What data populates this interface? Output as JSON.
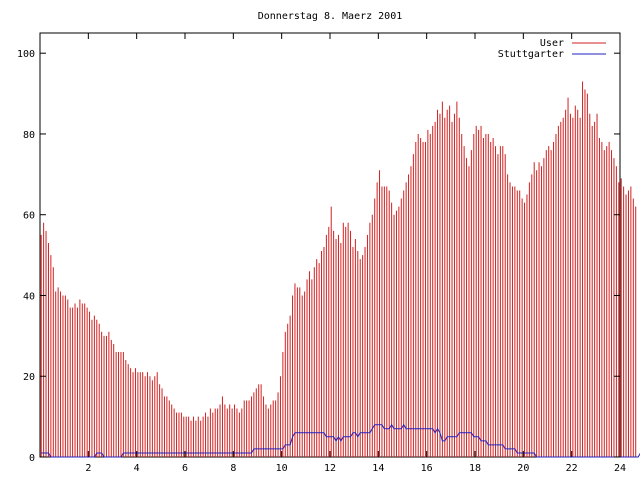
{
  "chart_data": {
    "type": "bar",
    "title": "Donnerstag 8. Maerz 2001",
    "xlabel": "",
    "ylabel": "",
    "xlim": [
      0,
      24
    ],
    "ylim": [
      0,
      105
    ],
    "x_ticks": [
      2,
      4,
      6,
      8,
      10,
      12,
      14,
      16,
      18,
      20,
      22,
      24
    ],
    "y_ticks": [
      0,
      20,
      40,
      60,
      80,
      100
    ],
    "grid": false,
    "legend_position": "top-right",
    "interval_hours": 0.1,
    "series": [
      {
        "name": "User",
        "kind": "impulses",
        "color": "#d02020",
        "values": [
          55,
          58,
          56,
          53,
          50,
          47,
          41,
          42,
          41,
          40,
          40,
          39,
          37,
          37,
          38,
          37,
          39,
          38,
          38,
          37,
          36,
          34,
          35,
          34,
          33,
          31,
          30,
          30,
          31,
          29,
          28,
          26,
          26,
          26,
          26,
          24,
          23,
          22,
          21,
          22,
          21,
          21,
          21,
          20,
          21,
          20,
          19,
          20,
          21,
          18,
          17,
          15,
          15,
          14,
          13,
          12,
          11,
          11,
          11,
          10,
          10,
          10,
          9,
          10,
          9,
          10,
          9,
          10,
          11,
          10,
          12,
          11,
          12,
          12,
          13,
          15,
          13,
          12,
          13,
          12,
          13,
          12,
          11,
          12,
          14,
          14,
          14,
          15,
          16,
          17,
          18,
          18,
          15,
          13,
          12,
          13,
          14,
          14,
          16,
          20,
          26,
          31,
          33,
          35,
          40,
          43,
          42,
          42,
          40,
          41,
          44,
          46,
          44,
          47,
          49,
          48,
          51,
          52,
          55,
          57,
          62,
          56,
          54,
          55,
          53,
          58,
          57,
          58,
          56,
          52,
          54,
          51,
          49,
          50,
          52,
          55,
          58,
          60,
          64,
          68,
          71,
          67,
          67,
          67,
          66,
          63,
          60,
          61,
          62,
          64,
          66,
          68,
          70,
          72,
          75,
          78,
          80,
          79,
          78,
          78,
          81,
          80,
          82,
          83,
          86,
          85,
          88,
          84,
          86,
          87,
          83,
          85,
          88,
          84,
          80,
          77,
          74,
          72,
          76,
          80,
          82,
          81,
          82,
          79,
          80,
          80,
          78,
          79,
          77,
          75,
          77,
          77,
          75,
          70,
          68,
          67,
          67,
          66,
          66,
          64,
          63,
          65,
          68,
          70,
          73,
          71,
          73,
          72,
          74,
          76,
          77,
          76,
          78,
          80,
          82,
          83,
          84,
          86,
          89,
          85,
          84,
          87,
          86,
          84,
          93,
          91,
          90,
          85,
          82,
          83,
          85,
          79,
          78,
          76,
          77,
          78,
          76,
          74,
          72,
          68,
          69,
          67,
          65,
          66,
          67,
          64,
          62
        ]
      },
      {
        "name": "Stuttgarter",
        "kind": "line",
        "color": "#2020c0",
        "values": [
          1,
          1,
          1,
          1,
          0,
          0,
          0,
          0,
          0,
          0,
          0,
          0,
          0,
          0,
          0,
          0,
          0,
          0,
          0,
          0,
          0,
          0,
          0,
          1,
          1,
          1,
          0,
          0,
          0,
          0,
          0,
          0,
          0,
          0,
          1,
          1,
          1,
          1,
          1,
          1,
          1,
          1,
          1,
          1,
          1,
          1,
          1,
          1,
          1,
          1,
          1,
          1,
          1,
          1,
          1,
          1,
          1,
          1,
          1,
          1,
          1,
          1,
          1,
          1,
          1,
          1,
          1,
          1,
          1,
          1,
          1,
          1,
          1,
          1,
          1,
          1,
          1,
          1,
          1,
          1,
          1,
          1,
          1,
          1,
          1,
          1,
          1,
          1,
          2,
          2,
          2,
          2,
          2,
          2,
          2,
          2,
          2,
          2,
          2,
          2,
          2,
          3,
          3,
          3,
          5,
          6,
          6,
          6,
          6,
          6,
          6,
          6,
          6,
          6,
          6,
          6,
          6,
          6,
          5,
          5,
          5,
          5,
          4,
          5,
          4,
          5,
          5,
          5,
          5,
          6,
          6,
          5,
          6,
          6,
          6,
          6,
          6,
          7,
          8,
          8,
          8,
          8,
          7,
          7,
          7,
          8,
          7,
          7,
          7,
          7,
          8,
          7,
          7,
          7,
          7,
          7,
          7,
          7,
          7,
          7,
          7,
          7,
          7,
          6,
          7,
          6,
          4,
          4,
          5,
          5,
          5,
          5,
          5,
          6,
          6,
          6,
          6,
          6,
          6,
          5,
          5,
          5,
          4,
          4,
          4,
          3,
          3,
          3,
          3,
          3,
          3,
          3,
          2,
          2,
          2,
          2,
          2,
          1,
          1,
          1,
          1,
          1,
          1,
          1,
          1,
          0,
          0,
          0,
          0,
          0,
          0,
          0,
          0,
          0,
          0,
          0,
          0,
          0,
          0,
          0,
          0,
          0,
          0,
          0,
          0,
          0,
          0,
          0,
          0,
          0,
          0,
          0,
          0,
          0,
          0,
          0,
          0,
          0,
          0,
          0,
          0,
          0,
          0,
          0,
          0,
          0,
          0,
          0,
          1,
          1
        ]
      }
    ]
  }
}
